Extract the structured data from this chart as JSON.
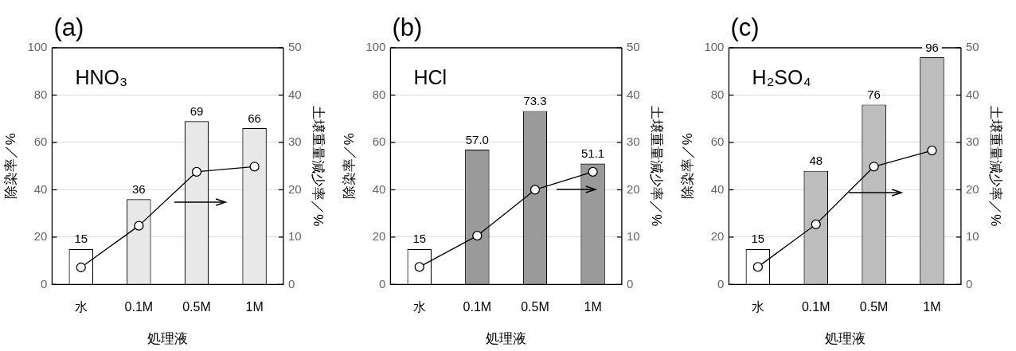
{
  "chart_data": [
    {
      "type": "bar",
      "title": "(a)",
      "xlabel": "処理液",
      "ylabel": "除染率／%",
      "y2label": "土壌重量減少率／%",
      "annotations": [
        "HNO₃"
      ],
      "categories": [
        "水",
        "0.1M",
        "0.5M",
        "1M"
      ],
      "series": [
        {
          "colors": [
            "#ffffff",
            "#e8e8e8",
            "#e8e8e8",
            "#e8e8e8"
          ],
          "values": [
            15,
            36,
            69,
            66
          ],
          "value_labels": [
            "15",
            "36",
            "69",
            "66"
          ]
        },
        {
          "type": "line",
          "axis": "y2",
          "color": "#000000",
          "marker": "circle",
          "values": [
            3.6,
            12.4,
            23.8,
            24.9
          ]
        }
      ],
      "ylim": [
        0,
        100
      ],
      "yticks": [
        0,
        20,
        40,
        60,
        80,
        100
      ],
      "y2lim": [
        0,
        50
      ],
      "y2ticks": [
        0,
        10,
        20,
        30,
        40,
        50
      ],
      "grid": "y"
    },
    {
      "type": "bar",
      "title": "(b)",
      "xlabel": "処理液",
      "ylabel": "除染率／%",
      "y2label": "土壌重量減少率／%",
      "annotations": [
        "HCl"
      ],
      "categories": [
        "水",
        "0.1M",
        "0.5M",
        "1M"
      ],
      "series": [
        {
          "colors": [
            "#ffffff",
            "#9a9a9a",
            "#9a9a9a",
            "#9a9a9a"
          ],
          "values": [
            15,
            57.0,
            73.3,
            51.1
          ],
          "value_labels": [
            "15",
            "57.0",
            "73.3",
            "51.1"
          ]
        },
        {
          "type": "line",
          "axis": "y2",
          "color": "#000000",
          "marker": "circle",
          "values": [
            3.7,
            10.3,
            20.0,
            23.8
          ]
        }
      ],
      "ylim": [
        0,
        100
      ],
      "yticks": [
        0,
        20,
        40,
        60,
        80,
        100
      ],
      "y2lim": [
        0,
        50
      ],
      "y2ticks": [
        0,
        10,
        20,
        30,
        40,
        50
      ],
      "grid": "y"
    },
    {
      "type": "bar",
      "title": "(c)",
      "xlabel": "処理液",
      "ylabel": "除染率／%",
      "y2label": "土壌重量減少率／%",
      "annotations": [
        "H₂SO₄"
      ],
      "categories": [
        "水",
        "0.1M",
        "0.5M",
        "1M"
      ],
      "series": [
        {
          "colors": [
            "#ffffff",
            "#bdbdbd",
            "#bdbdbd",
            "#bdbdbd"
          ],
          "values": [
            15,
            48,
            76,
            96
          ],
          "value_labels": [
            "15",
            "48",
            "76",
            "96"
          ]
        },
        {
          "type": "line",
          "axis": "y2",
          "color": "#000000",
          "marker": "circle",
          "values": [
            3.7,
            12.7,
            24.9,
            28.3
          ]
        }
      ],
      "ylim": [
        0,
        100
      ],
      "yticks": [
        0,
        20,
        40,
        60,
        80,
        100
      ],
      "y2lim": [
        0,
        50
      ],
      "y2ticks": [
        0,
        10,
        20,
        30,
        40,
        50
      ],
      "grid": "y"
    }
  ]
}
